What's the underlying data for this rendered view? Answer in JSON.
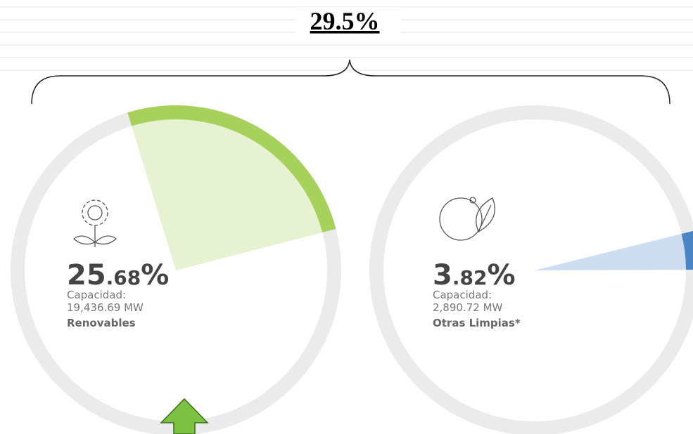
{
  "title": "29.5%",
  "chart_data": [
    {
      "type": "pie",
      "values": [
        25.68
      ],
      "value_labels": [
        "25.68%"
      ],
      "caption": "Capacidad:",
      "capacity": "19,436.69 MW",
      "name": "Renovables",
      "color": "#a6d15a"
    },
    {
      "type": "pie",
      "values": [
        3.82
      ],
      "value_labels": [
        "3.82%"
      ],
      "caption": "Capacidad:",
      "capacity": "2,890.72 MW",
      "name": "Otras Limpias*",
      "color": "#4a86c5"
    }
  ]
}
